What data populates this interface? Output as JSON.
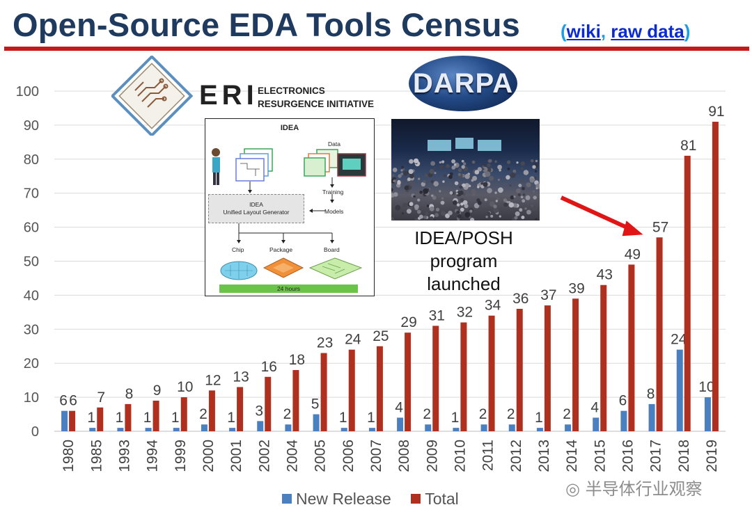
{
  "header": {
    "title": "Open-Source EDA Tools Census",
    "link_open": "(",
    "link_wiki": "wiki",
    "link_sep": ", ",
    "link_raw": "raw data",
    "link_close": ")"
  },
  "eri": {
    "logo_text": "ERI",
    "line1": "ELECTRONICS",
    "line2": "RESURGENCE INITIATIVE"
  },
  "darpa": {
    "logo_text": "DARPA"
  },
  "idea_diagram": {
    "title": "IDEA",
    "data_label": "Data",
    "training_label": "Training",
    "models_label": "Models",
    "generator_line1": "IDEA",
    "generator_line2": "Unified Layout Generator",
    "chip_label": "Chip",
    "package_label": "Package",
    "board_label": "Board",
    "hours_label": "24 hours"
  },
  "caption": {
    "line1": "IDEA/POSH",
    "line2": "program",
    "line3": "launched"
  },
  "watermark": "半导体行业观察",
  "colors": {
    "title": "#1f3a5f",
    "accent_red": "#c41a1a",
    "new_release": "#4a7fc0",
    "total": "#b0301f"
  },
  "chart_data": {
    "type": "bar",
    "categories": [
      "1980",
      "1985",
      "1993",
      "1994",
      "1999",
      "2000",
      "2001",
      "2002",
      "2004",
      "2005",
      "2006",
      "2007",
      "2008",
      "2009",
      "2010",
      "2011",
      "2012",
      "2013",
      "2014",
      "2015",
      "2016",
      "2017",
      "2018",
      "2019"
    ],
    "series": [
      {
        "name": "New Release",
        "values": [
          6,
          1,
          1,
          1,
          1,
          2,
          1,
          3,
          2,
          5,
          1,
          1,
          4,
          2,
          1,
          2,
          2,
          1,
          2,
          4,
          6,
          8,
          24,
          10
        ]
      },
      {
        "name": "Total",
        "values": [
          6,
          7,
          8,
          9,
          10,
          12,
          13,
          16,
          18,
          23,
          24,
          25,
          29,
          31,
          32,
          34,
          36,
          37,
          39,
          43,
          49,
          57,
          81,
          91
        ]
      }
    ],
    "ylim": [
      0,
      100
    ],
    "yticks": [
      0,
      10,
      20,
      30,
      40,
      50,
      60,
      70,
      80,
      90,
      100
    ],
    "grid": true,
    "legend_position": "bottom",
    "xlabel": "",
    "ylabel": "",
    "annotation": {
      "type": "arrow",
      "points_to": "2017"
    }
  }
}
